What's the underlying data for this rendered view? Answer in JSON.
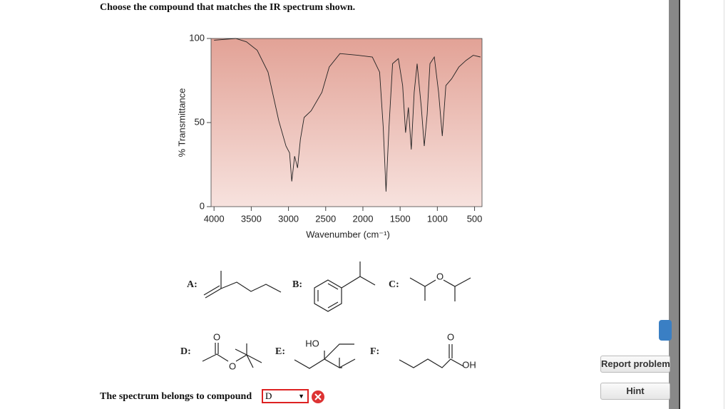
{
  "question": "Choose the compound that matches the IR spectrum shown.",
  "spectrum": {
    "ylabel": "% Transmittance",
    "xlabel": "Wavenumber (cm⁻¹)",
    "xlim": [
      4040,
      400
    ],
    "ylim": [
      0,
      100
    ],
    "xticks": [
      4000,
      3500,
      3000,
      2500,
      2000,
      1500,
      1000,
      500
    ],
    "yticks": [
      0,
      50,
      100
    ],
    "x": [
      4000,
      3710,
      3565,
      3420,
      3275,
      3130,
      3033,
      2985,
      2956,
      2917,
      2878,
      2840,
      2790,
      2695,
      2550,
      2453,
      2308,
      2066,
      1873,
      1776,
      1727,
      1689,
      1650,
      1601,
      1524,
      1466,
      1427,
      1389,
      1350,
      1311,
      1272,
      1215,
      1176,
      1137,
      1099,
      1041,
      983,
      934,
      886,
      808,
      711,
      614,
      518,
      421
    ],
    "y": [
      99,
      100,
      98,
      93,
      80,
      51,
      36,
      32,
      15,
      30,
      23,
      40,
      53,
      57,
      68,
      83,
      91,
      90,
      89,
      80,
      47,
      9,
      47,
      85,
      88,
      72,
      44,
      59,
      34,
      68,
      85,
      59,
      36,
      55,
      85,
      89,
      68,
      42,
      72,
      76,
      83,
      87,
      90,
      89
    ]
  },
  "options": [
    {
      "letter": "A:"
    },
    {
      "letter": "B:"
    },
    {
      "letter": "C:",
      "atoms": [
        "O"
      ]
    },
    {
      "letter": "D:",
      "atoms": [
        "O",
        "O"
      ]
    },
    {
      "letter": "E:",
      "atoms": [
        "HO"
      ]
    },
    {
      "letter": "F:",
      "atoms": [
        "O",
        "OH"
      ]
    }
  ],
  "answer": {
    "prompt": "The spectrum belongs to compound",
    "selected": "D"
  },
  "buttons": [
    "Report problem",
    "Hint"
  ]
}
